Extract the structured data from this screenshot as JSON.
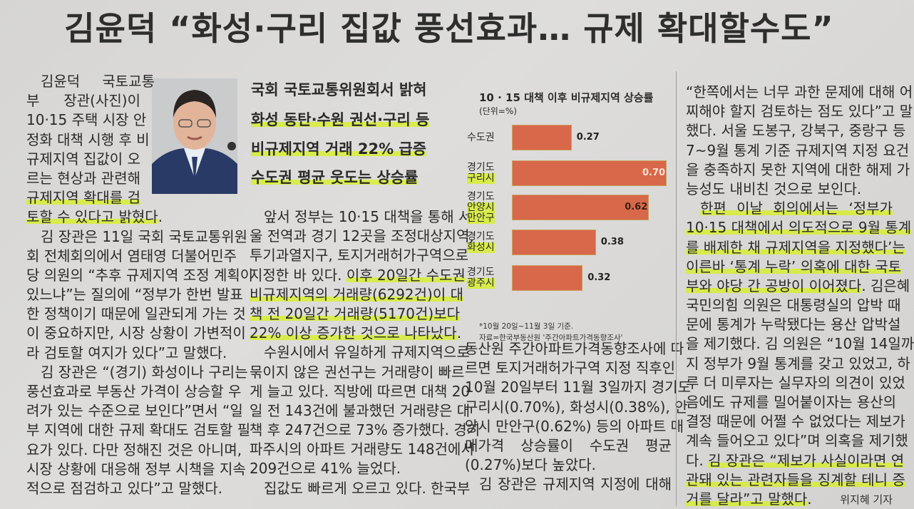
{
  "headline": "김윤덕 “화성·구리 집값 풍선효과… 규제 확대할수도”",
  "subheads": [
    {
      "text": "국회 국토교통위원회서 밝혀",
      "hl": false
    },
    {
      "text": "화성 동탄·수원 권선·구리 등",
      "hl": true
    },
    {
      "text": "비규제지역 거래 22% 급증",
      "hl": true
    },
    {
      "text": "수도권 평균 웃도는 상승률",
      "hl": true
    }
  ],
  "columns": {
    "col1": [
      {
        "segs": [
          {
            "t": "김윤덕 국토교통"
          }
        ],
        "ind": true
      },
      {
        "segs": [
          {
            "t": "부  장관(사진)이"
          }
        ]
      },
      {
        "segs": [
          {
            "t": "10·15 주택 시장 안"
          }
        ]
      },
      {
        "segs": [
          {
            "t": "정화 대책 시행 후 비"
          }
        ]
      },
      {
        "segs": [
          {
            "t": "규제지역 집값이 오"
          }
        ]
      },
      {
        "segs": [
          {
            "t": "르는 현상과 관련해"
          }
        ]
      },
      {
        "segs": [
          {
            "t": "규제지역 확대를 검",
            "hl": true
          }
        ]
      },
      {
        "segs": [
          {
            "t": "토할 수 있다고 밝혔다",
            "hl": true
          },
          {
            "t": "."
          }
        ],
        "end": true
      },
      {
        "segs": [
          {
            "t": "김 장관은 11일 국회 국토교통위원"
          }
        ],
        "ind": true
      },
      {
        "segs": [
          {
            "t": "회 전체회의에서 염태영 더불어민주"
          }
        ]
      },
      {
        "segs": [
          {
            "t": "당 의원의 “추후 규제지역 조정 계획이"
          }
        ]
      },
      {
        "segs": [
          {
            "t": "있느냐”는 질의에 “정부가 한번 발표"
          }
        ]
      },
      {
        "segs": [
          {
            "t": "한 정책이기 때문에 일관되게 가는 것"
          }
        ]
      },
      {
        "segs": [
          {
            "t": "이 중요하지만, 시장 상황이 가변적이"
          }
        ]
      },
      {
        "segs": [
          {
            "t": "라 검토할 여지가 있다”고 말했다."
          }
        ],
        "end": true
      },
      {
        "segs": [
          {
            "t": "김 장관은 “(경기) 화성이나 구리는"
          }
        ],
        "ind": true
      },
      {
        "segs": [
          {
            "t": "풍선효과로 부동산 가격이 상승할 우"
          }
        ]
      },
      {
        "segs": [
          {
            "t": "려가 있는 수준으로 보인다”면서 “일"
          }
        ]
      },
      {
        "segs": [
          {
            "t": "부 지역에 대한 규제 확대도 검토할 필"
          }
        ]
      },
      {
        "segs": [
          {
            "t": "요가 있다. 다만 정해진 것은 아니며,"
          }
        ]
      },
      {
        "segs": [
          {
            "t": "시장 상황에 대응해 정부 시책을 지속"
          }
        ]
      },
      {
        "segs": [
          {
            "t": "적으로 점검하고 있다”고 말했다."
          }
        ],
        "end": true
      }
    ],
    "col2": [
      {
        "segs": [
          {
            "t": "앞서 정부는 10·15 대책을 통해 서"
          }
        ],
        "ind": true
      },
      {
        "segs": [
          {
            "t": "울 전역과 경기 12곳을 조정대상지역,"
          }
        ]
      },
      {
        "segs": [
          {
            "t": "투기과열지구, 토지거래허가구역으로"
          }
        ]
      },
      {
        "segs": [
          {
            "t": "지정한 바 있다. "
          },
          {
            "t": "이후 20일간 수도권",
            "hl": true
          }
        ]
      },
      {
        "segs": [
          {
            "t": "비규제지역의 거래량(6292건)이 대",
            "hl": true
          }
        ]
      },
      {
        "segs": [
          {
            "t": "책 전 20일간 거래량(5170건)보다",
            "hl": true
          }
        ]
      },
      {
        "segs": [
          {
            "t": "22% 이상 증가한 것으로 나타났다",
            "hl": true
          },
          {
            "t": "."
          }
        ],
        "end": true
      },
      {
        "segs": [
          {
            "t": "수원시에서 유일하게 규제지역으로"
          }
        ],
        "ind": true
      },
      {
        "segs": [
          {
            "t": "묶이지 않은 권선구는 거래량이 빠르"
          }
        ]
      },
      {
        "segs": [
          {
            "t": "게 늘고 있다. 직방에 따르면 대책 20"
          }
        ]
      },
      {
        "segs": [
          {
            "t": "일 전 143건에 불과했던 거래량은 대"
          }
        ]
      },
      {
        "segs": [
          {
            "t": "책 후 247건으로 73% 증가했다. 경기"
          }
        ]
      },
      {
        "segs": [
          {
            "t": "파주시의 아파트 거래량도 148건에서"
          }
        ]
      },
      {
        "segs": [
          {
            "t": "209건으로 41% 늘었다."
          }
        ],
        "end": true
      },
      {
        "segs": [
          {
            "t": "집값도 빠르게 오르고 있다. 한국부"
          }
        ],
        "ind": true
      }
    ],
    "col3": [
      {
        "segs": [
          {
            "t": "동산원 주간아파트가격동향조사에 따"
          }
        ]
      },
      {
        "segs": [
          {
            "t": "르면 토지거래허가구역 지정 직후인"
          }
        ]
      },
      {
        "segs": [
          {
            "t": "10월 20일부터 11월 3일까지 경기도"
          }
        ]
      },
      {
        "segs": [
          {
            "t": "구리시(0.70%), 화성시(0.38%), 안"
          }
        ]
      },
      {
        "segs": [
          {
            "t": "양시 만안구(0.62%) 등의 아파트 매"
          }
        ]
      },
      {
        "segs": [
          {
            "t": "매가격  상승률이  수도권  평균"
          }
        ]
      },
      {
        "segs": [
          {
            "t": "(0.27%)보다 높았다."
          }
        ],
        "end": true
      },
      {
        "segs": [
          {
            "t": "김 장관은 규제지역 지정에 대해"
          }
        ],
        "ind": true
      }
    ],
    "col4": [
      {
        "segs": [
          {
            "t": "“한쪽에서는 너무 과한 문제에 대해 어"
          }
        ]
      },
      {
        "segs": [
          {
            "t": "찌해야 할지 검토하는 점도 있다”고 말"
          }
        ]
      },
      {
        "segs": [
          {
            "t": "했다. 서울 도봉구, 강북구, 중랑구 등"
          }
        ]
      },
      {
        "segs": [
          {
            "t": "7~9월 통계 기준 규제지역 지정 요건"
          }
        ]
      },
      {
        "segs": [
          {
            "t": "을 충족하지 못한 지역에 대한 해제 가"
          }
        ]
      },
      {
        "segs": [
          {
            "t": "능성도 내비친 것으로 보인다."
          }
        ],
        "end": true
      },
      {
        "segs": [
          {
            "t": "한편  이날  회의에서는  ‘정부가",
            "hl": true
          }
        ],
        "ind": true
      },
      {
        "segs": [
          {
            "t": "10·15 대책에서 의도적으로 9월 통계",
            "hl": true
          }
        ]
      },
      {
        "segs": [
          {
            "t": "를 배제한 채 규제지역을 지정했다’는",
            "hl": true
          }
        ]
      },
      {
        "segs": [
          {
            "t": "이른바 ‘통계 누락’ 의혹에 대한 국토",
            "hl": true
          }
        ]
      },
      {
        "segs": [
          {
            "t": "부와 야당 간 공방이 이어졌다",
            "hl": true
          },
          {
            "t": ". 김은혜"
          }
        ]
      },
      {
        "segs": [
          {
            "t": "국민의힘 의원은 대통령실의 압박 때"
          }
        ]
      },
      {
        "segs": [
          {
            "t": "문에 통계가 누락됐다는 용산 압박설"
          }
        ]
      },
      {
        "segs": [
          {
            "t": "을 제기했다. 김 의원은 “10월 14일까"
          }
        ]
      },
      {
        "segs": [
          {
            "t": "지 정부가 9월 통계를 갖고 있었고, 하"
          }
        ]
      },
      {
        "segs": [
          {
            "t": "루 더 미루자는 실무자의 의견이 있었"
          }
        ]
      },
      {
        "segs": [
          {
            "t": "음에도 규제를 밀어붙이자는 용산의"
          }
        ]
      },
      {
        "segs": [
          {
            "t": "결정 때문에 어쩔 수 없었다는 제보가"
          }
        ]
      },
      {
        "segs": [
          {
            "t": "계속 들어오고 있다”며 의혹을 제기했"
          }
        ]
      },
      {
        "segs": [
          {
            "t": "다. "
          },
          {
            "t": "김 장관은 “제보가 사실이라면 연",
            "hl": true
          }
        ]
      },
      {
        "segs": [
          {
            "t": "관돼 있는 관련자들을 징계할 테니 증",
            "hl": true
          }
        ]
      },
      {
        "segs": [
          {
            "t": "거를 달라”고 말했다",
            "hl": true
          },
          {
            "t": "."
          }
        ],
        "end": true
      }
    ]
  },
  "byline": "위지혜 기자",
  "highlight_color": "#d6f028",
  "chart_data": {
    "type": "bar",
    "orientation": "horizontal",
    "title": "10 · 15 대책 이후 비규제지역 상승률",
    "unit": "(단위=%)",
    "categories": [
      "수도권",
      "경기도\n구리시",
      "경기도\n안양시\n만안구",
      "경기도\n화성시",
      "경기도\n광주시"
    ],
    "values": [
      0.27,
      0.7,
      0.62,
      0.38,
      0.32
    ],
    "value_labels": [
      "0.27",
      "0.70",
      "0.62",
      "0.38",
      "0.32"
    ],
    "bar_color": "#d8684a",
    "footnotes": [
      "*10월 20일~11월 3일 기준.",
      "자료=한국부동산원 '주간아파트가격동향조사'"
    ]
  }
}
